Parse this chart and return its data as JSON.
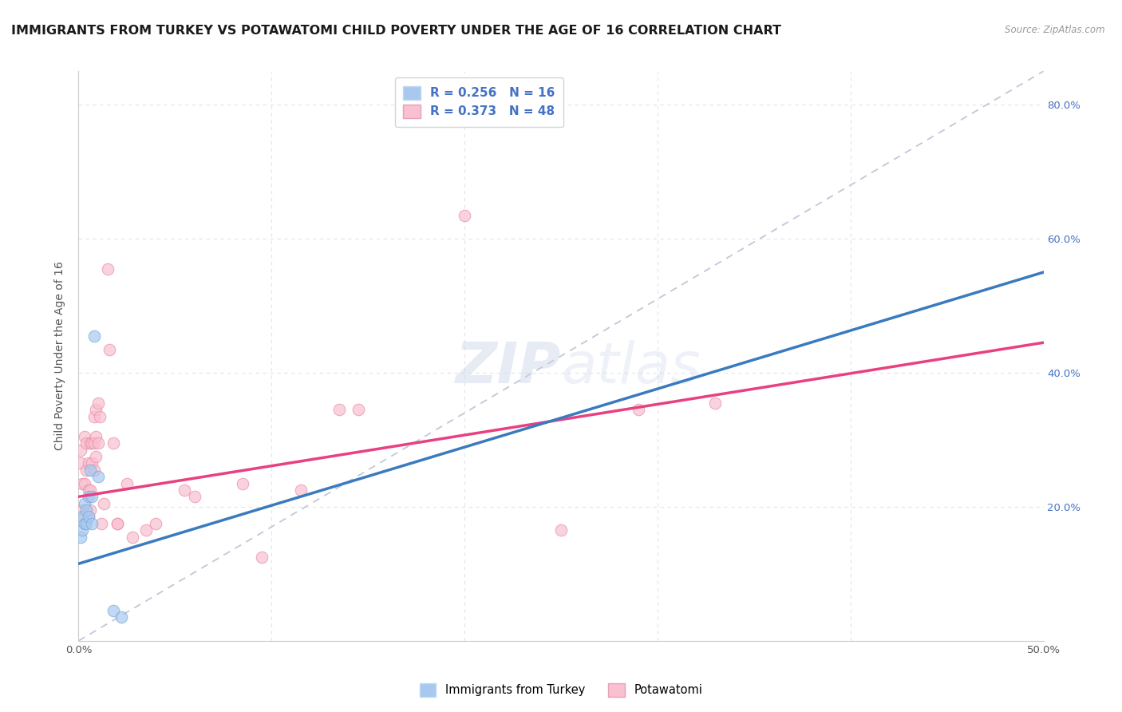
{
  "title": "IMMIGRANTS FROM TURKEY VS POTAWATOMI CHILD POVERTY UNDER THE AGE OF 16 CORRELATION CHART",
  "source": "Source: ZipAtlas.com",
  "ylabel": "Child Poverty Under the Age of 16",
  "xlim": [
    0,
    0.5
  ],
  "ylim": [
    0,
    0.85
  ],
  "right_ytick_labels": [
    "20.0%",
    "40.0%",
    "60.0%",
    "80.0%"
  ],
  "right_yticks": [
    0.2,
    0.4,
    0.6,
    0.8
  ],
  "blue_scatter_x": [
    0.001,
    0.002,
    0.002,
    0.003,
    0.003,
    0.004,
    0.004,
    0.005,
    0.005,
    0.006,
    0.007,
    0.007,
    0.008,
    0.01,
    0.018,
    0.022
  ],
  "blue_scatter_y": [
    0.155,
    0.165,
    0.185,
    0.175,
    0.205,
    0.175,
    0.195,
    0.185,
    0.215,
    0.255,
    0.175,
    0.215,
    0.455,
    0.245,
    0.045,
    0.035
  ],
  "pink_scatter_x": [
    0.001,
    0.001,
    0.002,
    0.002,
    0.003,
    0.003,
    0.003,
    0.004,
    0.004,
    0.005,
    0.005,
    0.005,
    0.006,
    0.006,
    0.006,
    0.007,
    0.007,
    0.008,
    0.008,
    0.008,
    0.009,
    0.009,
    0.009,
    0.01,
    0.01,
    0.011,
    0.012,
    0.013,
    0.015,
    0.016,
    0.018,
    0.02,
    0.02,
    0.025,
    0.028,
    0.035,
    0.04,
    0.055,
    0.06,
    0.085,
    0.095,
    0.115,
    0.135,
    0.145,
    0.2,
    0.25,
    0.29,
    0.33
  ],
  "pink_scatter_y": [
    0.265,
    0.285,
    0.195,
    0.235,
    0.185,
    0.235,
    0.305,
    0.255,
    0.295,
    0.185,
    0.225,
    0.265,
    0.195,
    0.225,
    0.295,
    0.265,
    0.295,
    0.255,
    0.295,
    0.335,
    0.275,
    0.305,
    0.345,
    0.295,
    0.355,
    0.335,
    0.175,
    0.205,
    0.555,
    0.435,
    0.295,
    0.175,
    0.175,
    0.235,
    0.155,
    0.165,
    0.175,
    0.225,
    0.215,
    0.235,
    0.125,
    0.225,
    0.345,
    0.345,
    0.635,
    0.165,
    0.345,
    0.355
  ],
  "blue_line_x": [
    0.0,
    0.5
  ],
  "blue_line_y": [
    0.115,
    0.55
  ],
  "pink_line_x": [
    0.0,
    0.5
  ],
  "pink_line_y": [
    0.215,
    0.445
  ],
  "dashed_line_x": [
    0.0,
    0.5
  ],
  "dashed_line_y": [
    0.0,
    0.85
  ],
  "blue_scatter_color": "#a8c8f0",
  "blue_scatter_edge": "#7aadd6",
  "blue_scatter_alpha": 0.7,
  "pink_scatter_color": "#f9c0d0",
  "pink_scatter_edge": "#e890a8",
  "pink_scatter_alpha": 0.7,
  "blue_line_color": "#3a7abf",
  "pink_line_color": "#e84080",
  "dashed_line_color": "#c0c8d8",
  "watermark_text": "ZIPatlas",
  "scatter_size": 110,
  "background_color": "#ffffff",
  "grid_color": "#e0e4ea",
  "title_fontsize": 11.5,
  "axis_label_fontsize": 10,
  "tick_fontsize": 9.5
}
